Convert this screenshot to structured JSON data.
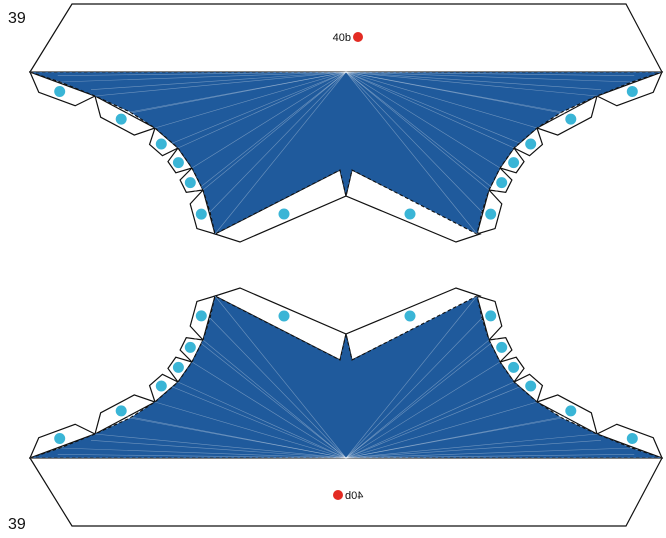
{
  "page_number_top": "39",
  "page_number_bottom": "39",
  "part_label": "40b",
  "colors": {
    "face": "#1f5a9c",
    "glue_dot": "#3ab5d6",
    "marker_dot": "#e32b23",
    "outline": "#111111"
  },
  "icons": {
    "marker": "red-circle-marker",
    "glue": "glue-dot"
  }
}
